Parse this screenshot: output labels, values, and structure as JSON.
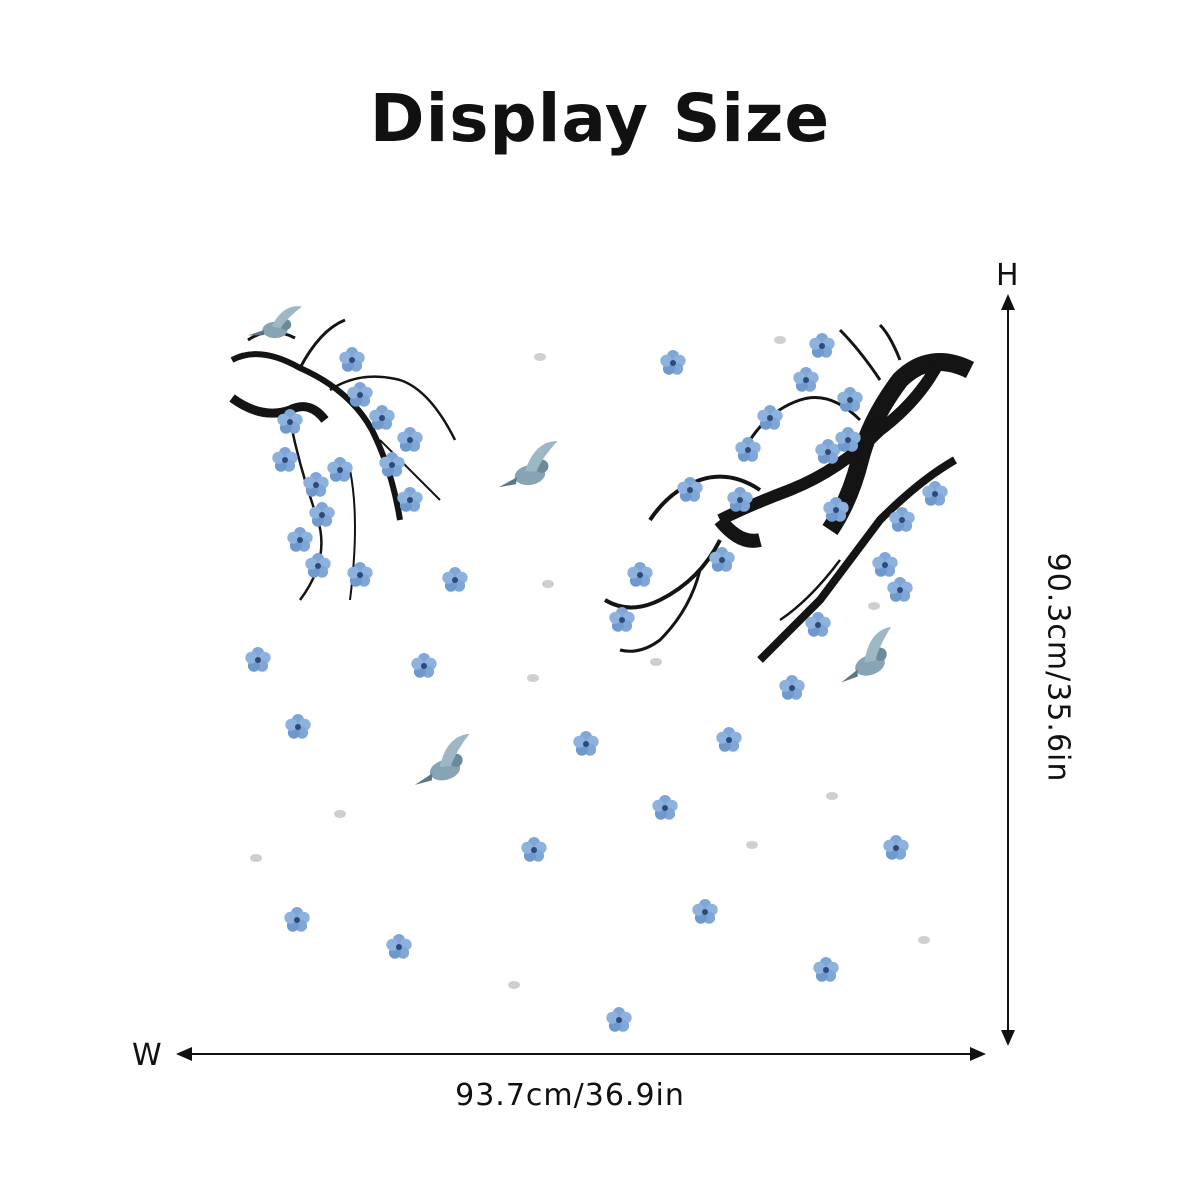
{
  "title": "Display Size",
  "dimensions": {
    "width_letter": "W",
    "height_letter": "H",
    "width_value": "93.7cm/36.9in",
    "height_value": "90.3cm/35.6in"
  },
  "colors": {
    "blossom": "#7fa6d6",
    "blossom_dark": "#4c6fa8",
    "branch": "#141414",
    "bird": "#86a4b4",
    "petal_grey": "#c9c9c9"
  },
  "illustration": {
    "subject": "ink-style plum blossom branches with birds and falling petals",
    "icons": [
      "branch-left-icon",
      "branch-right-icon",
      "bird-icon",
      "blossom-icon",
      "petal-icon"
    ]
  }
}
